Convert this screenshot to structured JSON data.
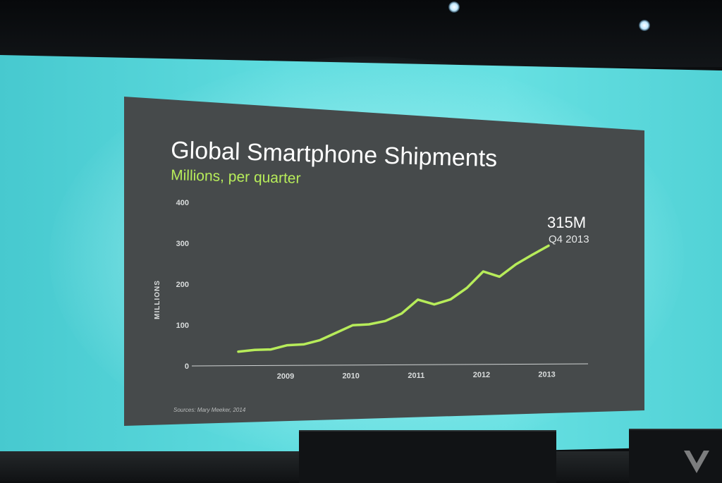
{
  "slide": {
    "title": "Global Smartphone Shipments",
    "subtitle": "Millions, per quarter",
    "source": "Sources: Mary Meeker, 2014",
    "annotation_value": "315M",
    "annotation_period": "Q4 2013"
  },
  "colors": {
    "line": "#b7ec5a",
    "slide_bg": "#464a4b",
    "backdrop": "#5fdcdf"
  },
  "chart_data": {
    "type": "line",
    "title": "Global Smartphone Shipments",
    "subtitle": "Millions, per quarter",
    "ylabel": "MILLIONS",
    "xlabel": "",
    "ylim": [
      0,
      400
    ],
    "yticks": [
      0,
      100,
      200,
      300,
      400
    ],
    "year_labels": [
      "2009",
      "2010",
      "2011",
      "2012",
      "2013"
    ],
    "grid": false,
    "series": [
      {
        "values": [
          {
            "x": "Q1 2008",
            "y": 35
          },
          {
            "x": "Q2 2008",
            "y": 39
          },
          {
            "x": "Q3 2008",
            "y": 40
          },
          {
            "x": "Q4 2008",
            "y": 50
          },
          {
            "x": "Q1 2009",
            "y": 52
          },
          {
            "x": "Q2 2009",
            "y": 62
          },
          {
            "x": "Q3 2009",
            "y": 80
          },
          {
            "x": "Q4 2009",
            "y": 98
          },
          {
            "x": "Q1 2010",
            "y": 100
          },
          {
            "x": "Q2 2010",
            "y": 108
          },
          {
            "x": "Q3 2010",
            "y": 126
          },
          {
            "x": "Q4 2010",
            "y": 160
          },
          {
            "x": "Q1 2011",
            "y": 148
          },
          {
            "x": "Q2 2011",
            "y": 160
          },
          {
            "x": "Q3 2011",
            "y": 188
          },
          {
            "x": "Q4 2011",
            "y": 228
          },
          {
            "x": "Q1 2012",
            "y": 215
          },
          {
            "x": "Q2 2012",
            "y": 245
          },
          {
            "x": "Q3 2012",
            "y": 268
          },
          {
            "x": "Q4 2012",
            "y": 290
          }
        ]
      }
    ]
  }
}
